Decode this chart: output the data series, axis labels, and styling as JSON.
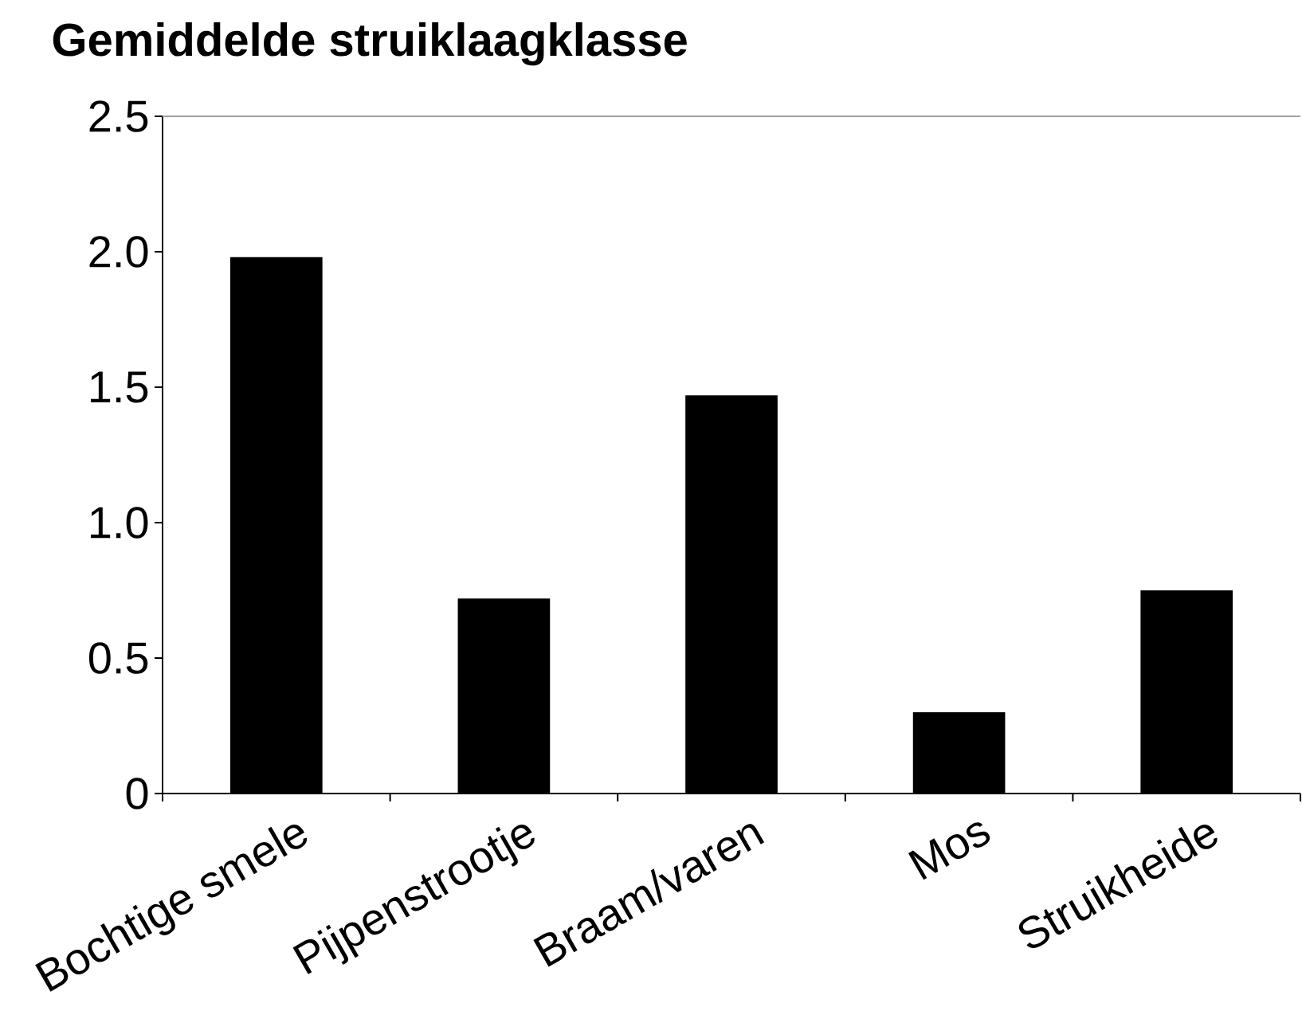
{
  "chart_data": {
    "type": "bar",
    "title": "Gemiddelde struiklaagklasse",
    "categories": [
      "Bochtige smele",
      "Pijpenstrootje",
      "Braam/varen",
      "Mos",
      "Struikheide"
    ],
    "values": [
      1.98,
      0.72,
      1.47,
      0.3,
      0.75
    ],
    "color": "#000000",
    "ylim": [
      0,
      2.5
    ],
    "yticks": [
      0,
      0.5,
      {
        "value": 1,
        "label": "1.0"
      },
      1.5,
      {
        "value": 2,
        "label": "2.0"
      },
      2.5
    ]
  }
}
